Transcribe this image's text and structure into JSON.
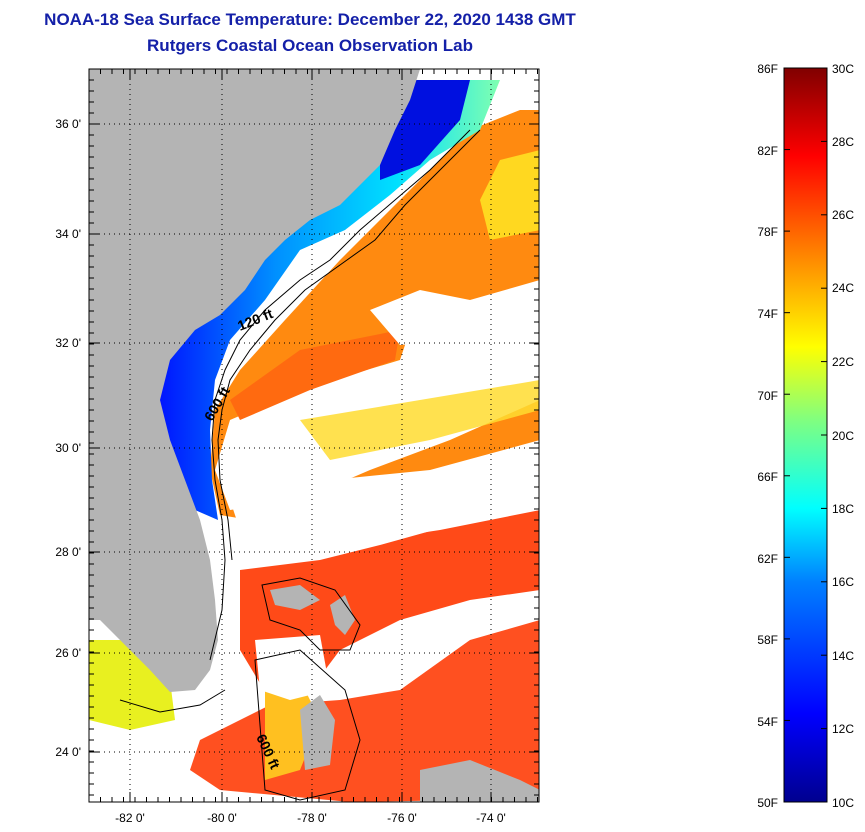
{
  "title": {
    "line1": "NOAA-18 Sea Surface Temperature:  December 22, 2020 1438 GMT",
    "line2": "Rutgers Coastal Ocean Observation Lab"
  },
  "map": {
    "x_axis_labels": [
      "-82 0'",
      "-80 0'",
      "-78 0'",
      "-76 0'",
      "-74 0'"
    ],
    "y_axis_labels": [
      "36 0'",
      "34 0'",
      "32 0'",
      "30 0'",
      "28 0'",
      "26 0'",
      "24 0'"
    ],
    "contour_labels": [
      "120 ft",
      "600 ft",
      "600 ft"
    ],
    "colors": {
      "land": "#b4b4b4",
      "cloud": "#ffffff",
      "grid": "#000000"
    }
  },
  "colorbar": {
    "fahrenheit_labels": [
      "86F",
      "82F",
      "78F",
      "74F",
      "70F",
      "66F",
      "62F",
      "58F",
      "54F",
      "50F"
    ],
    "celsius_labels": [
      "30C",
      "28C",
      "26C",
      "24C",
      "22C",
      "20C",
      "18C",
      "16C",
      "14C",
      "12C",
      "10C"
    ],
    "range_f": [
      50,
      86
    ],
    "range_c": [
      10,
      30
    ],
    "colormap": [
      "#00008f",
      "#0000ff",
      "#0080ff",
      "#00ffff",
      "#80ff80",
      "#ffff00",
      "#ff8000",
      "#ff0000",
      "#800000"
    ]
  }
}
